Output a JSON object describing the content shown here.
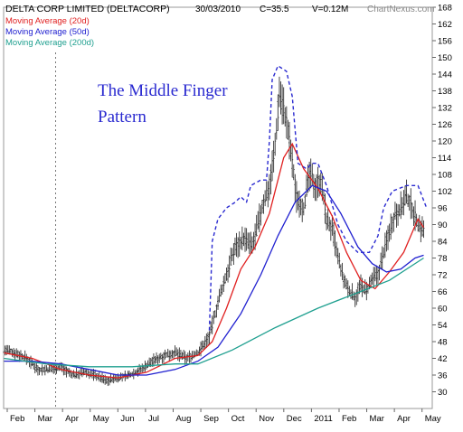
{
  "header": {
    "title": "DELTA CORP LIMITED (DELTACORP)",
    "date": "30/03/2010",
    "close": "C=35.5",
    "volume": "V=0.12M",
    "brand": "ChartNexus.com"
  },
  "legend": [
    {
      "label": "Moving Average (20d)",
      "color": "#e02020"
    },
    {
      "label": "Moving Average (50d)",
      "color": "#2020d0"
    },
    {
      "label": "Moving Average (200d)",
      "color": "#20a090"
    }
  ],
  "annotation": {
    "line1": "The Middle Finger",
    "line2": "Pattern",
    "color": "#2a2ad0"
  },
  "chart_data": {
    "type": "candlestick",
    "y_ticks": [
      30,
      36,
      42,
      48,
      54,
      60,
      66,
      72,
      78,
      84,
      90,
      96,
      102,
      108,
      114,
      120,
      126,
      132,
      138,
      144,
      150,
      156,
      162,
      168
    ],
    "ylim": [
      24,
      168
    ],
    "x_ticks": [
      "Feb",
      "Mar",
      "Apr",
      "May",
      "Jun",
      "Jul",
      "Aug",
      "Sep",
      "Oct",
      "Nov",
      "Dec",
      "2011",
      "Feb",
      "Mar",
      "Apr",
      "May"
    ],
    "price_path": [
      [
        0,
        45
      ],
      [
        8,
        44
      ],
      [
        16,
        42
      ],
      [
        24,
        38
      ],
      [
        32,
        38
      ],
      [
        40,
        39
      ],
      [
        48,
        36
      ],
      [
        56,
        37
      ],
      [
        64,
        36
      ],
      [
        72,
        34
      ],
      [
        80,
        35
      ],
      [
        88,
        36
      ],
      [
        96,
        38
      ],
      [
        104,
        41
      ],
      [
        112,
        43
      ],
      [
        120,
        44
      ],
      [
        128,
        42
      ],
      [
        136,
        44
      ],
      [
        144,
        50
      ],
      [
        150,
        62
      ],
      [
        156,
        72
      ],
      [
        162,
        82
      ],
      [
        168,
        85
      ],
      [
        174,
        82
      ],
      [
        178,
        90
      ],
      [
        182,
        98
      ],
      [
        186,
        104
      ],
      [
        190,
        118
      ],
      [
        193,
        138
      ],
      [
        196,
        132
      ],
      [
        200,
        120
      ],
      [
        205,
        100
      ],
      [
        210,
        96
      ],
      [
        214,
        108
      ],
      [
        218,
        104
      ],
      [
        222,
        106
      ],
      [
        226,
        92
      ],
      [
        230,
        88
      ],
      [
        234,
        78
      ],
      [
        238,
        70
      ],
      [
        242,
        66
      ],
      [
        246,
        64
      ],
      [
        250,
        68
      ],
      [
        254,
        66
      ],
      [
        258,
        70
      ],
      [
        262,
        72
      ],
      [
        266,
        80
      ],
      [
        270,
        88
      ],
      [
        274,
        94
      ],
      [
        278,
        96
      ],
      [
        282,
        100
      ],
      [
        286,
        96
      ],
      [
        290,
        90
      ],
      [
        294,
        88
      ]
    ],
    "series": [
      {
        "name": "Moving Average (20d)",
        "color": "#e02020",
        "points": [
          [
            0,
            44
          ],
          [
            20,
            42
          ],
          [
            40,
            38
          ],
          [
            60,
            36
          ],
          [
            80,
            35
          ],
          [
            100,
            37
          ],
          [
            120,
            42
          ],
          [
            136,
            43
          ],
          [
            146,
            48
          ],
          [
            156,
            60
          ],
          [
            166,
            74
          ],
          [
            176,
            82
          ],
          [
            186,
            94
          ],
          [
            196,
            114
          ],
          [
            202,
            119
          ],
          [
            210,
            110
          ],
          [
            220,
            103
          ],
          [
            230,
            93
          ],
          [
            240,
            80
          ],
          [
            250,
            70
          ],
          [
            260,
            67
          ],
          [
            270,
            73
          ],
          [
            280,
            80
          ],
          [
            290,
            92
          ],
          [
            294,
            89
          ]
        ]
      },
      {
        "name": "Moving Average (50d)",
        "color": "#2020d0",
        "points": [
          [
            0,
            41
          ],
          [
            20,
            41
          ],
          [
            40,
            40
          ],
          [
            60,
            38
          ],
          [
            80,
            36
          ],
          [
            100,
            36
          ],
          [
            120,
            38
          ],
          [
            136,
            41
          ],
          [
            150,
            46
          ],
          [
            166,
            58
          ],
          [
            180,
            72
          ],
          [
            192,
            86
          ],
          [
            204,
            98
          ],
          [
            216,
            104
          ],
          [
            226,
            102
          ],
          [
            236,
            94
          ],
          [
            248,
            82
          ],
          [
            258,
            76
          ],
          [
            268,
            73
          ],
          [
            278,
            74
          ],
          [
            288,
            78
          ],
          [
            294,
            79
          ]
        ]
      },
      {
        "name": "Moving Average (200d)",
        "color": "#20a090",
        "points": [
          [
            0,
            42
          ],
          [
            30,
            40
          ],
          [
            60,
            39
          ],
          [
            90,
            39
          ],
          [
            120,
            40
          ],
          [
            136,
            40
          ],
          [
            160,
            45
          ],
          [
            190,
            53
          ],
          [
            220,
            60
          ],
          [
            250,
            66
          ],
          [
            270,
            70
          ],
          [
            294,
            78
          ]
        ]
      }
    ]
  }
}
